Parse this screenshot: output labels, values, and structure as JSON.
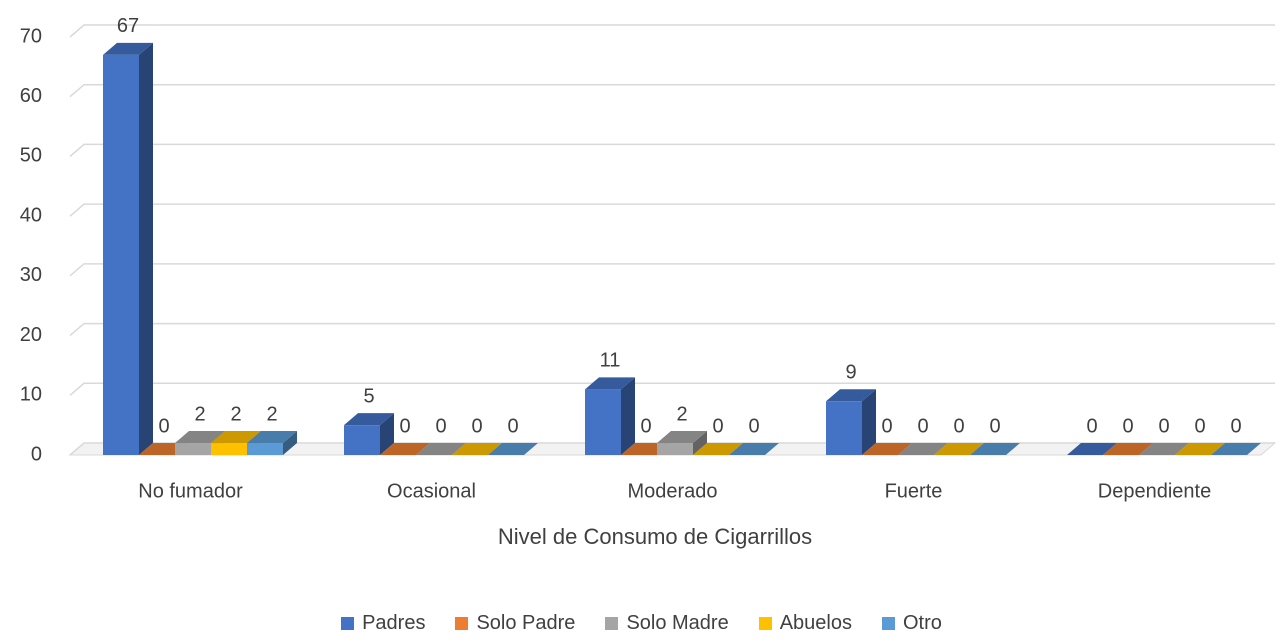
{
  "chart_data": {
    "type": "bar3d",
    "x_label": "Nivel de Consumo de Cigarrillos",
    "categories": [
      "No fumador",
      "Ocasional",
      "Moderado",
      "Fuerte",
      "Dependiente"
    ],
    "series": [
      {
        "name": "Padres",
        "color": "#4472c4",
        "values": [
          67,
          5,
          11,
          9,
          0
        ]
      },
      {
        "name": "Solo Padre",
        "color": "#ed7d31",
        "values": [
          0,
          0,
          0,
          0,
          0
        ]
      },
      {
        "name": "Solo Madre",
        "color": "#a5a5a5",
        "values": [
          2,
          0,
          2,
          0,
          0
        ]
      },
      {
        "name": "Abuelos",
        "color": "#ffc000",
        "values": [
          2,
          0,
          0,
          0,
          0
        ]
      },
      {
        "name": "Otro",
        "color": "#5b9bd5",
        "values": [
          2,
          0,
          0,
          0,
          0
        ]
      }
    ],
    "ylim": [
      0,
      70
    ],
    "yticks": [
      0,
      10,
      20,
      30,
      40,
      50,
      60,
      70
    ],
    "grid": true,
    "legend": "bottom"
  }
}
